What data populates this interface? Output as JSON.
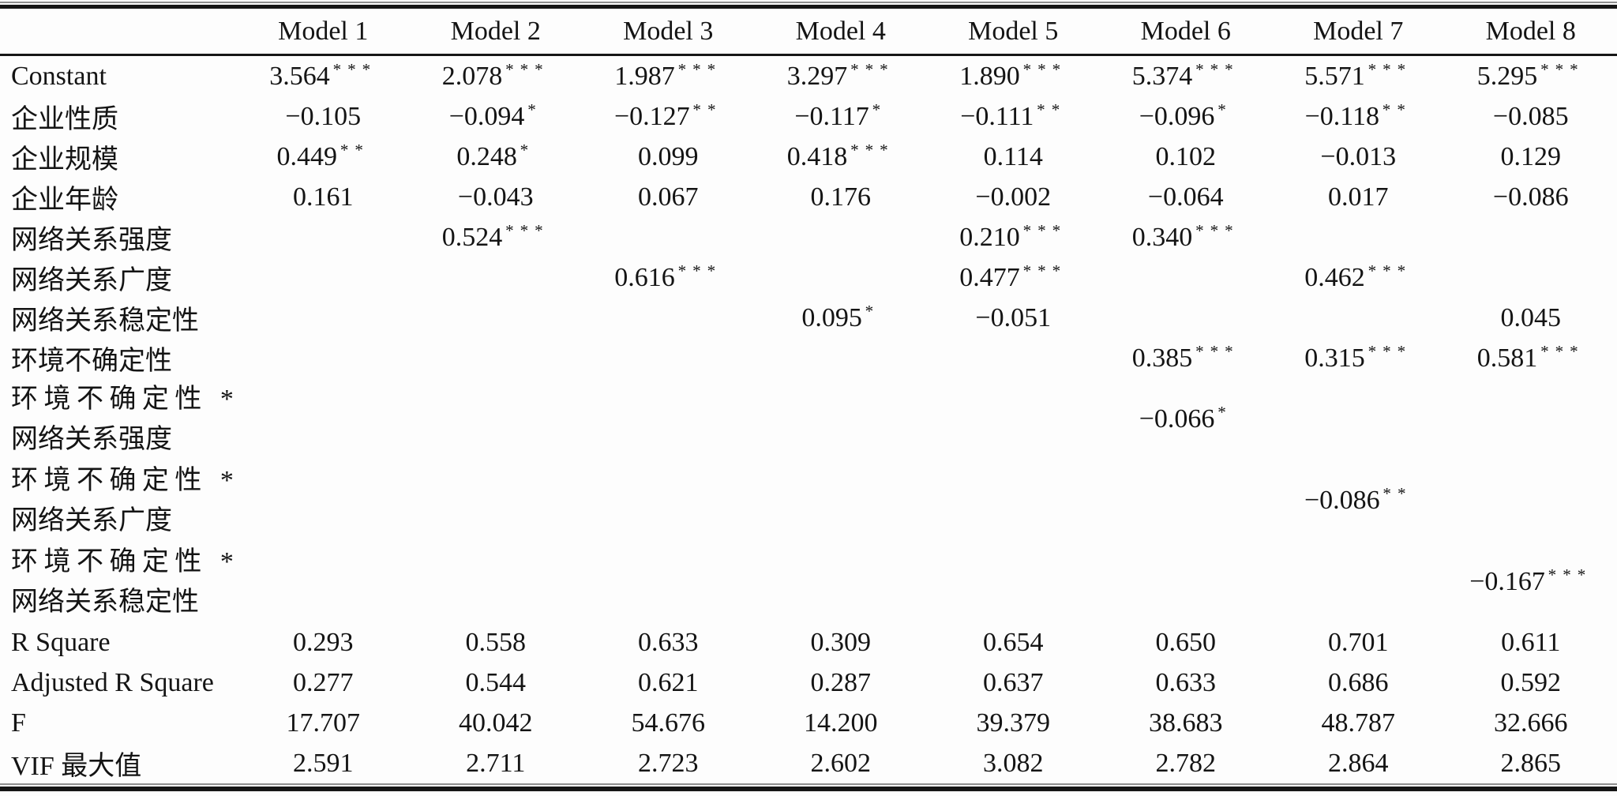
{
  "page": {
    "background": "#fdfdfd",
    "text_color": "#141414",
    "rule_color": "#161616"
  },
  "table": {
    "header": [
      "Model 1",
      "Model 2",
      "Model 3",
      "Model 4",
      "Model 5",
      "Model 6",
      "Model 7",
      "Model 8"
    ],
    "rows": [
      {
        "label": "Constant",
        "cells": [
          [
            "3.564",
            "***"
          ],
          [
            "2.078",
            "***"
          ],
          [
            "1.987",
            "***"
          ],
          [
            "3.297",
            "***"
          ],
          [
            "1.890",
            "***"
          ],
          [
            "5.374",
            "***"
          ],
          [
            "5.571",
            "***"
          ],
          [
            "5.295",
            "***"
          ]
        ]
      },
      {
        "label": "企业性质",
        "cells": [
          [
            "−0.105",
            ""
          ],
          [
            "−0.094",
            "*"
          ],
          [
            "−0.127",
            "**"
          ],
          [
            "−0.117",
            "*"
          ],
          [
            "−0.111",
            "**"
          ],
          [
            "−0.096",
            "*"
          ],
          [
            "−0.118",
            "**"
          ],
          [
            "−0.085",
            ""
          ]
        ]
      },
      {
        "label": "企业规模",
        "cells": [
          [
            "0.449",
            "**"
          ],
          [
            "0.248",
            "*"
          ],
          [
            "0.099",
            ""
          ],
          [
            "0.418",
            "***"
          ],
          [
            "0.114",
            ""
          ],
          [
            "0.102",
            ""
          ],
          [
            "−0.013",
            ""
          ],
          [
            "0.129",
            ""
          ]
        ]
      },
      {
        "label": "企业年龄",
        "cells": [
          [
            "0.161",
            ""
          ],
          [
            "−0.043",
            ""
          ],
          [
            "0.067",
            ""
          ],
          [
            "0.176",
            ""
          ],
          [
            "−0.002",
            ""
          ],
          [
            "−0.064",
            ""
          ],
          [
            "0.017",
            ""
          ],
          [
            "−0.086",
            ""
          ]
        ]
      },
      {
        "label": "网络关系强度",
        "cells": [
          [
            "",
            ""
          ],
          [
            "0.524",
            "***"
          ],
          [
            "",
            ""
          ],
          [
            "",
            ""
          ],
          [
            "0.210",
            "***"
          ],
          [
            "0.340",
            "***"
          ],
          [
            "",
            ""
          ],
          [
            "",
            ""
          ]
        ]
      },
      {
        "label": "网络关系广度",
        "cells": [
          [
            "",
            ""
          ],
          [
            "",
            ""
          ],
          [
            "0.616",
            "***"
          ],
          [
            "",
            ""
          ],
          [
            "0.477",
            "***"
          ],
          [
            "",
            ""
          ],
          [
            "0.462",
            "***"
          ],
          [
            "",
            ""
          ]
        ]
      },
      {
        "label": "网络关系稳定性",
        "cells": [
          [
            "",
            ""
          ],
          [
            "",
            ""
          ],
          [
            "",
            ""
          ],
          [
            "0.095",
            "*"
          ],
          [
            "−0.051",
            ""
          ],
          [
            "",
            ""
          ],
          [
            "",
            ""
          ],
          [
            "0.045",
            ""
          ]
        ]
      },
      {
        "label": "环境不确定性",
        "cells": [
          [
            "",
            ""
          ],
          [
            "",
            ""
          ],
          [
            "",
            ""
          ],
          [
            "",
            ""
          ],
          [
            "",
            ""
          ],
          [
            "0.385",
            "***"
          ],
          [
            "0.315",
            "***"
          ],
          [
            "0.581",
            "***"
          ]
        ]
      },
      {
        "label_lines": [
          "环境不确定性 *",
          "网络关系强度"
        ],
        "cells": [
          [
            "",
            ""
          ],
          [
            "",
            ""
          ],
          [
            "",
            ""
          ],
          [
            "",
            ""
          ],
          [
            "",
            ""
          ],
          [
            "−0.066",
            "*"
          ],
          [
            "",
            ""
          ],
          [
            "",
            ""
          ]
        ]
      },
      {
        "label_lines": [
          "环境不确定性 *",
          "网络关系广度"
        ],
        "cells": [
          [
            "",
            ""
          ],
          [
            "",
            ""
          ],
          [
            "",
            ""
          ],
          [
            "",
            ""
          ],
          [
            "",
            ""
          ],
          [
            "",
            ""
          ],
          [
            "−0.086",
            "**"
          ],
          [
            "",
            ""
          ]
        ]
      },
      {
        "label_lines": [
          "环境不确定性 *",
          "网络关系稳定性"
        ],
        "cells": [
          [
            "",
            ""
          ],
          [
            "",
            ""
          ],
          [
            "",
            ""
          ],
          [
            "",
            ""
          ],
          [
            "",
            ""
          ],
          [
            "",
            ""
          ],
          [
            "",
            ""
          ],
          [
            "−0.167",
            "***"
          ]
        ]
      },
      {
        "label": "R Square",
        "cells": [
          [
            "0.293",
            ""
          ],
          [
            "0.558",
            ""
          ],
          [
            "0.633",
            ""
          ],
          [
            "0.309",
            ""
          ],
          [
            "0.654",
            ""
          ],
          [
            "0.650",
            ""
          ],
          [
            "0.701",
            ""
          ],
          [
            "0.611",
            ""
          ]
        ]
      },
      {
        "label": "Adjusted R Square",
        "cells": [
          [
            "0.277",
            ""
          ],
          [
            "0.544",
            ""
          ],
          [
            "0.621",
            ""
          ],
          [
            "0.287",
            ""
          ],
          [
            "0.637",
            ""
          ],
          [
            "0.633",
            ""
          ],
          [
            "0.686",
            ""
          ],
          [
            "0.592",
            ""
          ]
        ]
      },
      {
        "label": "F",
        "cells": [
          [
            "17.707",
            ""
          ],
          [
            "40.042",
            ""
          ],
          [
            "54.676",
            ""
          ],
          [
            "14.200",
            ""
          ],
          [
            "39.379",
            ""
          ],
          [
            "38.683",
            ""
          ],
          [
            "48.787",
            ""
          ],
          [
            "32.666",
            ""
          ]
        ]
      },
      {
        "label": "VIF 最大值",
        "cells": [
          [
            "2.591",
            ""
          ],
          [
            "2.711",
            ""
          ],
          [
            "2.723",
            ""
          ],
          [
            "2.602",
            ""
          ],
          [
            "3.082",
            ""
          ],
          [
            "2.782",
            ""
          ],
          [
            "2.864",
            ""
          ],
          [
            "2.865",
            ""
          ]
        ]
      }
    ]
  }
}
